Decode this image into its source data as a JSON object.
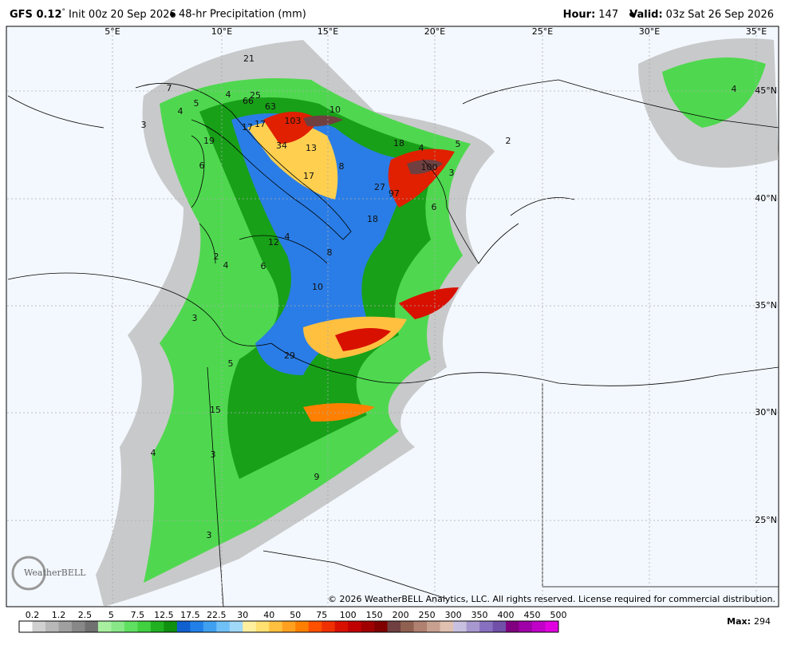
{
  "header": {
    "model": "GFS 0.12",
    "degree": "°",
    "init": "Init 00z 20 Sep 2026",
    "product": "48-hr Precipitation (mm)",
    "hour_label": "Hour:",
    "hour": "147",
    "valid_label": "Valid:",
    "valid": "03z Sat 26 Sep 2026"
  },
  "map": {
    "longitudes": [
      "5°E",
      "10°E",
      "15°E",
      "20°E",
      "25°E",
      "30°E",
      "35°E"
    ],
    "latitudes": [
      "45°N",
      "40°N",
      "35°N",
      "30°N",
      "25°N"
    ],
    "precip_labels": [
      21,
      7,
      4,
      25,
      66,
      63,
      103,
      10,
      3,
      5,
      4,
      17,
      17,
      34,
      13,
      8,
      19,
      6,
      17,
      18,
      4,
      5,
      2,
      100,
      3,
      27,
      97,
      6,
      18,
      12,
      4,
      8,
      2,
      4,
      6,
      10,
      3,
      29,
      5,
      15,
      4,
      3,
      9,
      3,
      4
    ],
    "logo": "WeatherBELL",
    "copyright": "© 2026 WeatherBELL Analytics, LLC. All rights reserved. License required for commercial distribution."
  },
  "colorbar": {
    "labels": [
      "0.2",
      "1.2",
      "2.5",
      "5",
      "7.5",
      "12.5",
      "17.5",
      "22.5",
      "30",
      "40",
      "50",
      "75",
      "100",
      "150",
      "200",
      "250",
      "300",
      "350",
      "400",
      "450",
      "500"
    ],
    "colors": [
      "#ffffff",
      "#d0d0d0",
      "#b8b8b8",
      "#a0a0a0",
      "#888888",
      "#707070",
      "#a8f0a0",
      "#88e888",
      "#60e060",
      "#40d040",
      "#20b020",
      "#109010",
      "#1060d0",
      "#2080e8",
      "#40a0f0",
      "#70c0f8",
      "#a0d8f8",
      "#fff0a0",
      "#ffe070",
      "#ffc040",
      "#ffa020",
      "#ff8000",
      "#ff5000",
      "#f03000",
      "#d81000",
      "#c00000",
      "#a00000",
      "#800000",
      "#704040",
      "#906050",
      "#b08070",
      "#c8a090",
      "#e0c0b0",
      "#c8c0e0",
      "#a898d0",
      "#8870c0",
      "#7050a8",
      "#800080",
      "#a000a8",
      "#c000c8",
      "#e000e0"
    ]
  },
  "footer": {
    "max_label": "Max:",
    "max": 294
  }
}
